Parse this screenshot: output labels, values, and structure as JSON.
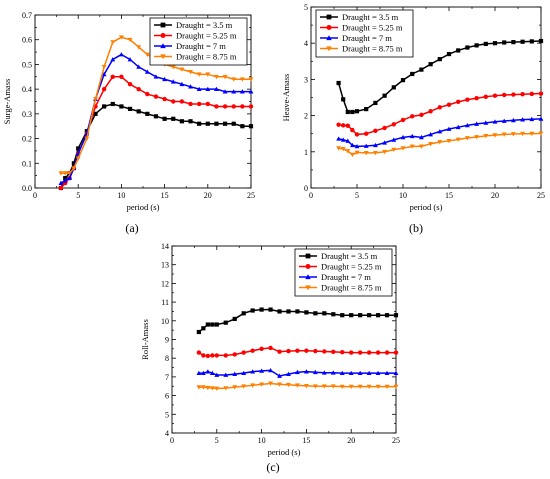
{
  "chart_data": [
    {
      "id": "a",
      "panel_label": "(a)",
      "type": "line",
      "xlabel": "period (s)",
      "ylabel": "Surge-Amass",
      "xlim": [
        0,
        25
      ],
      "ylim": [
        0,
        0.7
      ],
      "xticks": [
        0,
        5,
        10,
        15,
        20,
        25
      ],
      "yticks": [
        0.0,
        0.1,
        0.2,
        0.3,
        0.4,
        0.5,
        0.6,
        0.7
      ],
      "ytick_decimals": 1,
      "grid": false,
      "legend_position": "top-right",
      "x": [
        3,
        3.5,
        4,
        4.5,
        5,
        6,
        7,
        8,
        9,
        10,
        11,
        12,
        13,
        14,
        15,
        16,
        17,
        18,
        19,
        20,
        21,
        22,
        23,
        24,
        25
      ],
      "series": [
        {
          "name": "Draught = 3.5 m",
          "color": "#000000",
          "marker": "square",
          "values": [
            0.0,
            0.04,
            0.06,
            0.1,
            0.16,
            0.23,
            0.3,
            0.33,
            0.34,
            0.33,
            0.32,
            0.31,
            0.3,
            0.29,
            0.28,
            0.28,
            0.27,
            0.27,
            0.26,
            0.26,
            0.26,
            0.26,
            0.26,
            0.25,
            0.25
          ]
        },
        {
          "name": "Draught = 5.25 m",
          "color": "#ff0000",
          "marker": "circle",
          "values": [
            0.0,
            0.02,
            0.04,
            0.08,
            0.14,
            0.22,
            0.33,
            0.4,
            0.45,
            0.45,
            0.42,
            0.4,
            0.38,
            0.37,
            0.36,
            0.35,
            0.35,
            0.34,
            0.34,
            0.34,
            0.33,
            0.33,
            0.33,
            0.33,
            0.33
          ]
        },
        {
          "name": "Draught = 7 m",
          "color": "#0000ff",
          "marker": "triangle-up",
          "values": [
            0.02,
            0.03,
            0.04,
            0.08,
            0.14,
            0.22,
            0.36,
            0.46,
            0.52,
            0.54,
            0.52,
            0.49,
            0.47,
            0.45,
            0.44,
            0.43,
            0.42,
            0.41,
            0.4,
            0.4,
            0.4,
            0.39,
            0.39,
            0.39,
            0.39
          ]
        },
        {
          "name": "Draught = 8.75 m",
          "color": "#ff8000",
          "marker": "triangle-down",
          "values": [
            0.06,
            0.06,
            0.06,
            0.08,
            0.12,
            0.2,
            0.36,
            0.49,
            0.59,
            0.61,
            0.6,
            0.57,
            0.54,
            0.52,
            0.5,
            0.49,
            0.48,
            0.47,
            0.46,
            0.46,
            0.45,
            0.45,
            0.44,
            0.44,
            0.44
          ]
        }
      ]
    },
    {
      "id": "b",
      "panel_label": "(b)",
      "type": "line",
      "xlabel": "period (s)",
      "ylabel": "Heave-Amass",
      "xlim": [
        0,
        25
      ],
      "ylim": [
        0,
        5
      ],
      "xticks": [
        0,
        5,
        10,
        15,
        20,
        25
      ],
      "yticks": [
        0,
        1,
        2,
        3,
        4,
        5
      ],
      "ytick_decimals": 0,
      "grid": false,
      "legend_position": "top-left",
      "x": [
        3,
        3.5,
        4,
        4.5,
        5,
        6,
        7,
        8,
        9,
        10,
        11,
        12,
        13,
        14,
        15,
        16,
        17,
        18,
        19,
        20,
        21,
        22,
        23,
        24,
        25
      ],
      "series": [
        {
          "name": "Draught = 3.5 m",
          "color": "#000000",
          "marker": "square",
          "values": [
            2.9,
            2.45,
            2.1,
            2.1,
            2.12,
            2.18,
            2.35,
            2.55,
            2.78,
            2.98,
            3.15,
            3.27,
            3.42,
            3.56,
            3.7,
            3.8,
            3.88,
            3.94,
            3.98,
            4.0,
            4.02,
            4.03,
            4.04,
            4.05,
            4.06
          ]
        },
        {
          "name": "Draught = 5.25 m",
          "color": "#ff0000",
          "marker": "circle",
          "values": [
            1.75,
            1.73,
            1.72,
            1.6,
            1.48,
            1.5,
            1.58,
            1.66,
            1.76,
            1.88,
            1.98,
            2.02,
            2.12,
            2.23,
            2.3,
            2.38,
            2.44,
            2.48,
            2.52,
            2.55,
            2.57,
            2.58,
            2.59,
            2.6,
            2.61
          ]
        },
        {
          "name": "Draught = 7 m",
          "color": "#0000ff",
          "marker": "triangle-up",
          "values": [
            1.36,
            1.33,
            1.3,
            1.18,
            1.15,
            1.16,
            1.18,
            1.25,
            1.33,
            1.4,
            1.43,
            1.4,
            1.48,
            1.56,
            1.63,
            1.68,
            1.73,
            1.77,
            1.8,
            1.83,
            1.85,
            1.87,
            1.89,
            1.9,
            1.91
          ]
        },
        {
          "name": "Draught = 8.75 m",
          "color": "#ff8000",
          "marker": "triangle-down",
          "values": [
            1.1,
            1.08,
            1.02,
            0.92,
            0.98,
            0.97,
            0.97,
            1.0,
            1.06,
            1.1,
            1.15,
            1.15,
            1.22,
            1.27,
            1.3,
            1.34,
            1.38,
            1.41,
            1.44,
            1.46,
            1.48,
            1.49,
            1.5,
            1.5,
            1.51
          ]
        }
      ]
    },
    {
      "id": "c",
      "panel_label": "(c)",
      "type": "line",
      "xlabel": "period (s)",
      "ylabel": "Roll-Amass",
      "xlim": [
        0,
        25
      ],
      "ylim": [
        4,
        14
      ],
      "xticks": [
        0,
        5,
        10,
        15,
        20,
        25
      ],
      "yticks": [
        4,
        5,
        6,
        7,
        8,
        9,
        10,
        11,
        12,
        13,
        14
      ],
      "ytick_decimals": 0,
      "grid": false,
      "legend_position": "top-right",
      "x": [
        3,
        3.5,
        4,
        4.5,
        5,
        6,
        7,
        8,
        9,
        10,
        11,
        12,
        13,
        14,
        15,
        16,
        17,
        18,
        19,
        20,
        21,
        22,
        23,
        24,
        25
      ],
      "series": [
        {
          "name": "Draught = 3.5 m",
          "color": "#000000",
          "marker": "square",
          "values": [
            9.4,
            9.6,
            9.8,
            9.8,
            9.8,
            9.9,
            10.1,
            10.4,
            10.55,
            10.6,
            10.6,
            10.5,
            10.5,
            10.5,
            10.45,
            10.4,
            10.4,
            10.35,
            10.3,
            10.3,
            10.3,
            10.3,
            10.3,
            10.3,
            10.3
          ]
        },
        {
          "name": "Draught = 5.25 m",
          "color": "#ff0000",
          "marker": "circle",
          "values": [
            8.3,
            8.15,
            8.12,
            8.15,
            8.15,
            8.15,
            8.2,
            8.3,
            8.4,
            8.5,
            8.55,
            8.35,
            8.38,
            8.4,
            8.4,
            8.38,
            8.36,
            8.34,
            8.32,
            8.3,
            8.3,
            8.3,
            8.3,
            8.3,
            8.3
          ]
        },
        {
          "name": "Draught = 7 m",
          "color": "#0000ff",
          "marker": "triangle-up",
          "values": [
            7.2,
            7.2,
            7.28,
            7.2,
            7.1,
            7.1,
            7.15,
            7.2,
            7.28,
            7.32,
            7.35,
            7.05,
            7.15,
            7.25,
            7.28,
            7.25,
            7.22,
            7.22,
            7.2,
            7.2,
            7.2,
            7.2,
            7.2,
            7.2,
            7.2
          ]
        },
        {
          "name": "Draught = 8.75 m",
          "color": "#ff8000",
          "marker": "triangle-down",
          "values": [
            6.45,
            6.45,
            6.42,
            6.4,
            6.38,
            6.4,
            6.45,
            6.5,
            6.55,
            6.6,
            6.65,
            6.6,
            6.58,
            6.55,
            6.52,
            6.5,
            6.5,
            6.5,
            6.48,
            6.48,
            6.48,
            6.48,
            6.48,
            6.48,
            6.48
          ]
        }
      ]
    }
  ]
}
